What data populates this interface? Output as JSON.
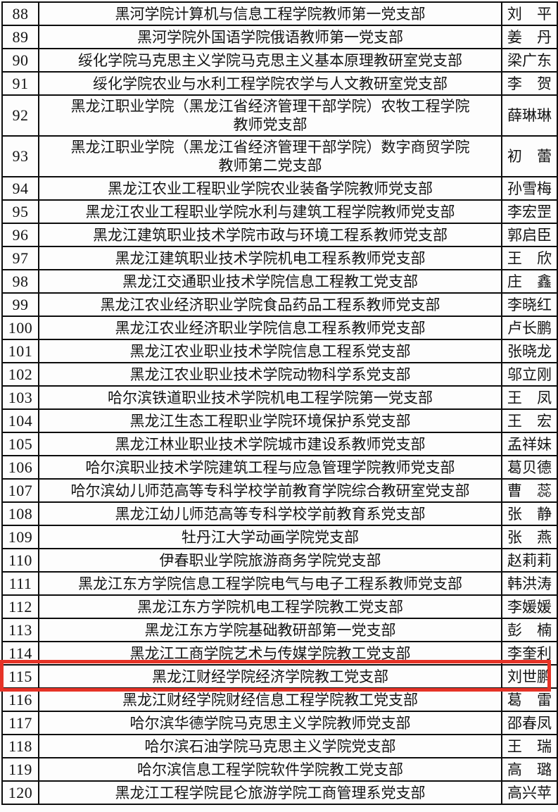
{
  "table": {
    "highlighted_num": "115",
    "highlight_color": "#e63327",
    "border_color": "#0d0d0d",
    "text_color": "#131313",
    "rows": [
      {
        "num": "88",
        "org": "黑河学院计算机与信息工程学院教师第一党支部",
        "name": "刘 平"
      },
      {
        "num": "89",
        "org": "黑河学院外国语学院俄语教师第一党支部",
        "name": "姜 丹"
      },
      {
        "num": "90",
        "org": "绥化学院马克思主义学院马克思主义基本原理教研室党支部",
        "name": "梁广东"
      },
      {
        "num": "91",
        "org": "绥化学院农业与水利工程学院农学与人文教研室党支部",
        "name": "李 贺"
      },
      {
        "num": "92",
        "org": "黑龙江职业学院（黑龙江省经济管理干部学院）农牧工程学院\n教师党支部",
        "name": "薛琳琳"
      },
      {
        "num": "93",
        "org": "黑龙江职业学院（黑龙江省经济管理干部学院）数字商贸学院\n教师第二党支部",
        "name": "初 蕾"
      },
      {
        "num": "94",
        "org": "黑龙江农业工程职业学院农业装备学院教师党支部",
        "name": "孙雪梅"
      },
      {
        "num": "95",
        "org": "黑龙江农业工程职业学院水利与建筑工程学院教师党支部",
        "name": "李宏罡"
      },
      {
        "num": "96",
        "org": "黑龙江建筑职业技术学院市政与环境工程系教师党支部",
        "name": "郭启臣"
      },
      {
        "num": "97",
        "org": "黑龙江建筑职业技术学院机电工程系教师党支部",
        "name": "王 欣"
      },
      {
        "num": "98",
        "org": "黑龙江交通职业技术学院信息工程教工党支部",
        "name": "庄 鑫"
      },
      {
        "num": "99",
        "org": "黑龙江农业经济职业学院食品药品工程系教师党支部",
        "name": "李晓红"
      },
      {
        "num": "100",
        "org": "黑龙江农业经济职业学院信息工程系教师党支部",
        "name": "卢长鹏"
      },
      {
        "num": "101",
        "org": "黑龙江农业职业技术学院信息工程系党支部",
        "name": "张晓龙"
      },
      {
        "num": "102",
        "org": "黑龙江农业职业技术学院动物科学系党支部",
        "name": "邬立刚"
      },
      {
        "num": "103",
        "org": "哈尔滨铁道职业技术学院机电工程学院第一党支部",
        "name": "王 凤"
      },
      {
        "num": "104",
        "org": "黑龙江生态工程职业学院环境保护系党支部",
        "name": "王 宏"
      },
      {
        "num": "105",
        "org": "黑龙江林业职业技术学院城市建设系教师党支部",
        "name": "孟祥妹"
      },
      {
        "num": "106",
        "org": "哈尔滨职业技术学院建筑工程与应急管理学院教师党支部",
        "name": "葛贝德"
      },
      {
        "num": "107",
        "org": "哈尔滨幼儿师范高等专科学校学前教育学院综合教研室党支部",
        "name": "曹 蕊"
      },
      {
        "num": "108",
        "org": "黑龙江幼儿师范高等专科学校学前教育系党支部",
        "name": "张 静"
      },
      {
        "num": "109",
        "org": "牡丹江大学动画学院党支部",
        "name": "张 燕"
      },
      {
        "num": "110",
        "org": "伊春职业学院旅游商务学院党支部",
        "name": "赵莉莉"
      },
      {
        "num": "111",
        "org": "黑龙江东方学院信息工程学院电气与电子工程系教师党支部",
        "name": "韩洪涛"
      },
      {
        "num": "112",
        "org": "黑龙江东方学院机电工程学院教工党支部",
        "name": "李媛媛"
      },
      {
        "num": "113",
        "org": "黑龙江东方学院基础教研部第一党支部",
        "name": "彭 楠"
      },
      {
        "num": "114",
        "org": "黑龙江工商学院艺术与传媒学院教工党支部",
        "name": "李奎利"
      },
      {
        "num": "115",
        "org": "黑龙江财经学院经济学院教工党支部",
        "name": "刘世鹏"
      },
      {
        "num": "116",
        "org": "黑龙江财经学院财经信息工程学院教工党支部",
        "name": "葛 雷"
      },
      {
        "num": "117",
        "org": "哈尔滨华德学院马克思主义学院教师党支部",
        "name": "邵春凤"
      },
      {
        "num": "118",
        "org": "哈尔滨石油学院马克思主义学院党支部",
        "name": "王 瑞"
      },
      {
        "num": "119",
        "org": "哈尔滨信息工程学院软件学院教工党支部",
        "name": "高 璐"
      },
      {
        "num": "120",
        "org": "黑龙江工程学院昆仑旅游学院工商管理系党支部",
        "name": "高兴苹"
      }
    ]
  }
}
